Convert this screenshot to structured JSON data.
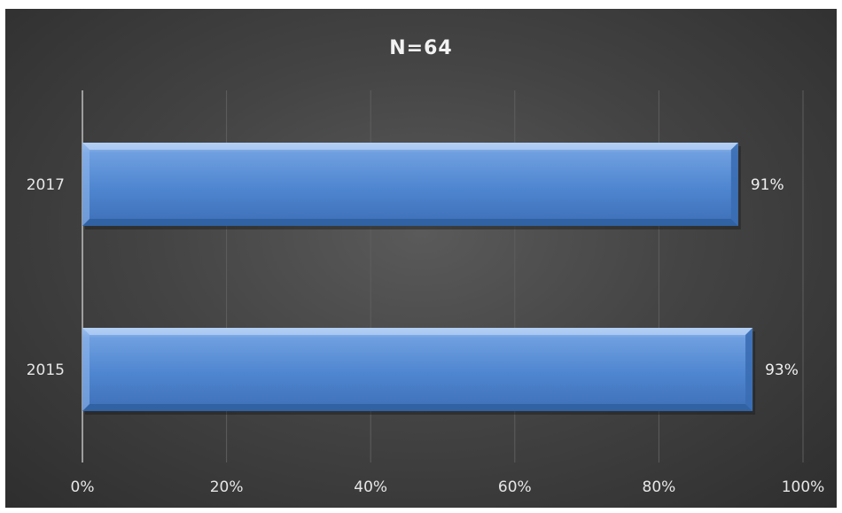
{
  "chart_data": {
    "type": "bar",
    "orientation": "horizontal",
    "title": "N=64",
    "categories": [
      "2017",
      "2015"
    ],
    "values": [
      91,
      93
    ],
    "data_labels": [
      "91%",
      "93%"
    ],
    "xlim": [
      0,
      100
    ],
    "xticks": [
      0,
      20,
      40,
      60,
      80,
      100
    ],
    "xtick_labels": [
      "0%",
      "20%",
      "40%",
      "60%",
      "80%",
      "100%"
    ],
    "grid": true,
    "legend": "none",
    "colors": {
      "bar": "#4a7fc8",
      "background": "#444444",
      "gridline": "#5e5e5e",
      "axis": "#bfbfbf",
      "text": "#e6e6e6"
    }
  }
}
